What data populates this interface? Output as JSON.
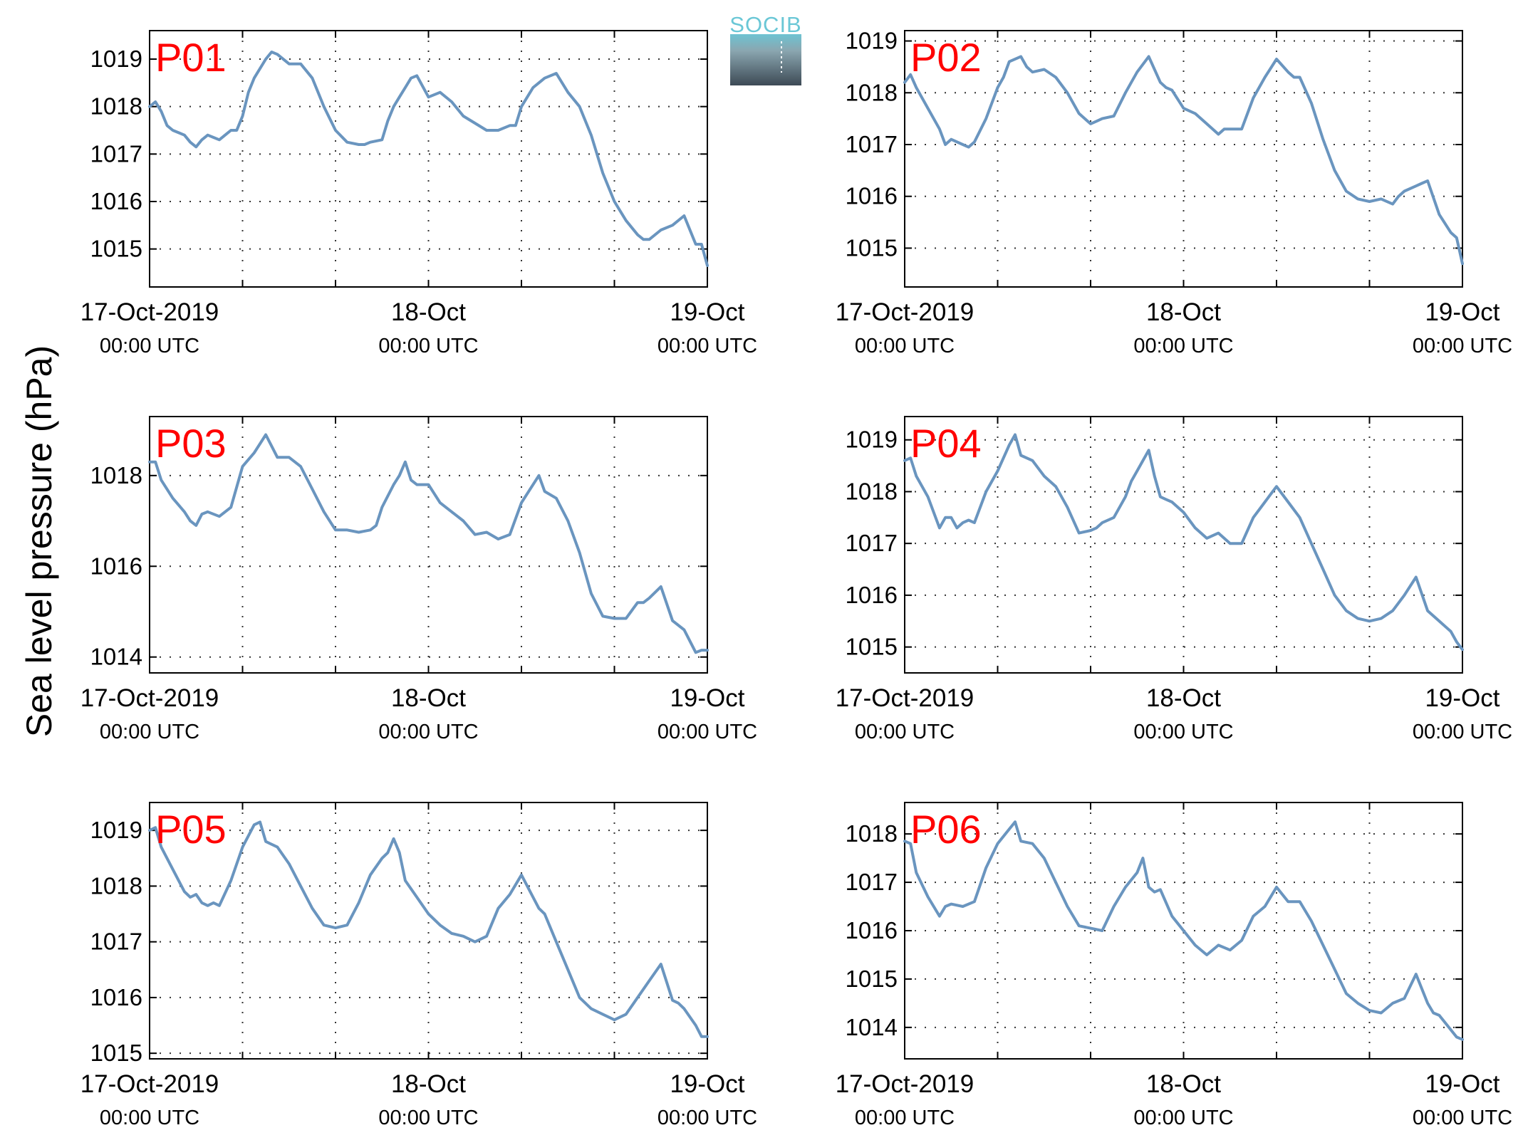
{
  "figure": {
    "ylabel": "Sea level pressure (hPa)",
    "logo_text": "SOCIB",
    "colors": {
      "line": "#6a95bf",
      "panel_label": "#ff0000",
      "axes": "#000000",
      "grid": "#333333",
      "logo_top": "#6ac7d6",
      "logo_bottom": "#3d4a55"
    }
  },
  "chart_data": [
    {
      "type": "line",
      "title": "P01",
      "x_start": "2019-10-17T00:00Z",
      "x_end": "2019-10-19T00:00Z",
      "x_tick_hours": [
        0,
        24,
        48
      ],
      "x_tick_labels": [
        [
          "17-Oct-2019",
          "00:00 UTC"
        ],
        [
          "18-Oct",
          "00:00 UTC"
        ],
        [
          "19-Oct",
          "00:00 UTC"
        ]
      ],
      "ylim": [
        1014.2,
        1019.6
      ],
      "yticks": [
        1015,
        1016,
        1017,
        1018,
        1019
      ],
      "grid": true,
      "series": [
        {
          "x_hours": [
            0,
            0.5,
            1,
            1.5,
            2,
            3,
            3.5,
            4,
            4.5,
            5,
            5.5,
            6,
            6.5,
            7,
            7.5,
            8,
            8.5,
            9,
            10,
            10.5,
            11,
            12,
            13,
            14,
            15,
            16,
            17,
            18,
            18.5,
            19,
            20,
            20.5,
            21,
            21.5,
            22,
            22.5,
            23,
            24,
            25,
            26,
            27,
            28,
            29,
            30,
            31,
            31.5,
            32,
            33,
            34,
            35,
            36,
            37,
            38,
            39,
            40,
            41,
            42,
            42.5,
            43,
            44,
            45,
            46,
            47,
            47.5,
            48
          ],
          "y": [
            1018.0,
            1018.1,
            1017.9,
            1017.6,
            1017.5,
            1017.4,
            1017.25,
            1017.15,
            1017.3,
            1017.4,
            1017.35,
            1017.3,
            1017.4,
            1017.5,
            1017.5,
            1017.8,
            1018.3,
            1018.6,
            1019.0,
            1019.15,
            1019.1,
            1018.9,
            1018.9,
            1018.6,
            1018.0,
            1017.5,
            1017.25,
            1017.2,
            1017.2,
            1017.25,
            1017.3,
            1017.7,
            1018.0,
            1018.2,
            1018.4,
            1018.6,
            1018.65,
            1018.2,
            1018.3,
            1018.1,
            1017.8,
            1017.65,
            1017.5,
            1017.5,
            1017.6,
            1017.6,
            1018.0,
            1018.4,
            1018.6,
            1018.7,
            1018.3,
            1018.0,
            1017.4,
            1016.6,
            1016.0,
            1015.6,
            1015.3,
            1015.2,
            1015.2,
            1015.4,
            1015.5,
            1015.7,
            1015.1,
            1015.1,
            1014.65
          ]
        }
      ]
    },
    {
      "type": "line",
      "title": "P02",
      "x_start": "2019-10-17T00:00Z",
      "x_end": "2019-10-19T00:00Z",
      "x_tick_hours": [
        0,
        24,
        48
      ],
      "x_tick_labels": [
        [
          "17-Oct-2019",
          "00:00 UTC"
        ],
        [
          "18-Oct",
          "00:00 UTC"
        ],
        [
          "19-Oct",
          "00:00 UTC"
        ]
      ],
      "ylim": [
        1014.25,
        1019.2
      ],
      "yticks": [
        1015,
        1016,
        1017,
        1018,
        1019
      ],
      "grid": true,
      "series": [
        {
          "x_hours": [
            0,
            0.5,
            1,
            2,
            3,
            3.5,
            4,
            5,
            5.5,
            6,
            7,
            8,
            8.5,
            9,
            10,
            10.5,
            11,
            12,
            13,
            14,
            15,
            16,
            16.5,
            17,
            18,
            19,
            19.5,
            20,
            21,
            22,
            22.5,
            23,
            24,
            25,
            26,
            27,
            27.5,
            28,
            29,
            30,
            31,
            32,
            33,
            33.5,
            34,
            35,
            36,
            37,
            38,
            39,
            40,
            41,
            42,
            42.5,
            43,
            44,
            44.5,
            45,
            46,
            47,
            47.5,
            48
          ],
          "y": [
            1018.2,
            1018.35,
            1018.1,
            1017.7,
            1017.3,
            1017.0,
            1017.1,
            1017.0,
            1016.95,
            1017.05,
            1017.5,
            1018.1,
            1018.3,
            1018.6,
            1018.7,
            1018.5,
            1018.4,
            1018.45,
            1018.3,
            1018.0,
            1017.6,
            1017.4,
            1017.45,
            1017.5,
            1017.55,
            1018.0,
            1018.2,
            1018.4,
            1018.7,
            1018.2,
            1018.1,
            1018.05,
            1017.7,
            1017.6,
            1017.4,
            1017.2,
            1017.3,
            1017.3,
            1017.3,
            1017.9,
            1018.3,
            1018.65,
            1018.4,
            1018.3,
            1018.3,
            1017.8,
            1017.1,
            1016.5,
            1016.1,
            1015.95,
            1015.9,
            1015.95,
            1015.85,
            1016.0,
            1016.1,
            1016.2,
            1016.25,
            1016.3,
            1015.65,
            1015.3,
            1015.2,
            1014.7
          ]
        }
      ]
    },
    {
      "type": "line",
      "title": "P03",
      "x_start": "2019-10-17T00:00Z",
      "x_end": "2019-10-19T00:00Z",
      "x_tick_hours": [
        0,
        24,
        48
      ],
      "x_tick_labels": [
        [
          "17-Oct-2019",
          "00:00 UTC"
        ],
        [
          "18-Oct",
          "00:00 UTC"
        ],
        [
          "19-Oct",
          "00:00 UTC"
        ]
      ],
      "ylim": [
        1013.65,
        1019.3
      ],
      "yticks": [
        1014,
        1016,
        1018
      ],
      "grid": true,
      "series": [
        {
          "x_hours": [
            0,
            0.5,
            1,
            2,
            3,
            3.5,
            4,
            4.5,
            5,
            6,
            7,
            8,
            9,
            9.5,
            10,
            11,
            12,
            13,
            14,
            15,
            16,
            17,
            18,
            19,
            19.5,
            20,
            21,
            21.5,
            22,
            22.5,
            23,
            24,
            25,
            26,
            27,
            28,
            29,
            30,
            31,
            32,
            33,
            33.5,
            34,
            35,
            36,
            37,
            38,
            39,
            40,
            41,
            42,
            42.5,
            43,
            44,
            45,
            46,
            47,
            47.5,
            48
          ],
          "y": [
            1018.3,
            1018.3,
            1017.9,
            1017.5,
            1017.2,
            1017.0,
            1016.9,
            1017.15,
            1017.2,
            1017.1,
            1017.3,
            1018.2,
            1018.5,
            1018.7,
            1018.9,
            1018.4,
            1018.4,
            1018.2,
            1017.7,
            1017.2,
            1016.8,
            1016.8,
            1016.75,
            1016.8,
            1016.9,
            1017.3,
            1017.8,
            1018.0,
            1018.3,
            1017.9,
            1017.8,
            1017.8,
            1017.4,
            1017.2,
            1017.0,
            1016.7,
            1016.75,
            1016.6,
            1016.7,
            1017.4,
            1017.8,
            1018.0,
            1017.65,
            1017.5,
            1017.0,
            1016.3,
            1015.4,
            1014.9,
            1014.85,
            1014.85,
            1015.2,
            1015.2,
            1015.3,
            1015.55,
            1014.8,
            1014.6,
            1014.1,
            1014.15,
            1014.15
          ]
        }
      ]
    },
    {
      "type": "line",
      "title": "P04",
      "x_start": "2019-10-17T00:00Z",
      "x_end": "2019-10-19T00:00Z",
      "x_tick_hours": [
        0,
        24,
        48
      ],
      "x_tick_labels": [
        [
          "17-Oct-2019",
          "00:00 UTC"
        ],
        [
          "18-Oct",
          "00:00 UTC"
        ],
        [
          "19-Oct",
          "00:00 UTC"
        ]
      ],
      "ylim": [
        1014.5,
        1019.45
      ],
      "yticks": [
        1015,
        1016,
        1017,
        1018,
        1019
      ],
      "grid": true,
      "series": [
        {
          "x_hours": [
            0,
            0.5,
            1,
            2,
            3,
            3.5,
            4,
            4.5,
            5,
            5.5,
            6,
            7,
            8,
            9,
            9.5,
            10,
            11,
            12,
            13,
            14,
            15,
            16,
            16.5,
            17,
            18,
            19,
            19.5,
            20,
            21,
            21.5,
            22,
            22.5,
            23,
            24,
            25,
            26,
            27,
            28,
            29,
            30,
            31,
            31.5,
            32,
            33,
            34,
            35,
            36,
            37,
            38,
            39,
            40,
            41,
            42,
            43,
            44,
            45,
            46,
            47,
            47.5,
            48
          ],
          "y": [
            1018.6,
            1018.65,
            1018.3,
            1017.9,
            1017.3,
            1017.5,
            1017.5,
            1017.3,
            1017.4,
            1017.45,
            1017.4,
            1018.0,
            1018.4,
            1018.9,
            1019.1,
            1018.7,
            1018.6,
            1018.3,
            1018.1,
            1017.7,
            1017.2,
            1017.25,
            1017.3,
            1017.4,
            1017.5,
            1017.9,
            1018.2,
            1018.4,
            1018.8,
            1018.3,
            1017.9,
            1017.85,
            1017.8,
            1017.6,
            1017.3,
            1017.1,
            1017.2,
            1017.0,
            1017.0,
            1017.5,
            1017.8,
            1017.95,
            1018.1,
            1017.8,
            1017.5,
            1017.0,
            1016.5,
            1016.0,
            1015.7,
            1015.55,
            1015.5,
            1015.55,
            1015.7,
            1016.0,
            1016.35,
            1015.7,
            1015.5,
            1015.3,
            1015.1,
            1014.95
          ]
        }
      ]
    },
    {
      "type": "line",
      "title": "P05",
      "x_start": "2019-10-17T00:00Z",
      "x_end": "2019-10-19T00:00Z",
      "x_tick_hours": [
        0,
        24,
        48
      ],
      "x_tick_labels": [
        [
          "17-Oct-2019",
          "00:00 UTC"
        ],
        [
          "18-Oct",
          "00:00 UTC"
        ],
        [
          "19-Oct",
          "00:00 UTC"
        ]
      ],
      "ylim": [
        1014.9,
        1019.5
      ],
      "yticks": [
        1015,
        1016,
        1017,
        1018,
        1019
      ],
      "grid": true,
      "series": [
        {
          "x_hours": [
            0,
            0.5,
            1,
            2,
            3,
            3.5,
            4,
            4.5,
            5,
            5.5,
            6,
            7,
            8,
            9,
            9.5,
            10,
            11,
            12,
            13,
            14,
            15,
            16,
            17,
            18,
            19,
            20,
            20.5,
            21,
            21.5,
            22,
            23,
            24,
            25,
            26,
            27,
            28,
            29,
            30,
            31,
            32,
            33,
            33.5,
            34,
            35,
            36,
            37,
            38,
            39,
            40,
            41,
            42,
            43,
            44,
            45,
            45.5,
            46,
            47,
            47.5,
            48
          ],
          "y": [
            1019.0,
            1019.05,
            1018.7,
            1018.3,
            1017.9,
            1017.8,
            1017.85,
            1017.7,
            1017.65,
            1017.7,
            1017.65,
            1018.1,
            1018.7,
            1019.1,
            1019.15,
            1018.8,
            1018.7,
            1018.4,
            1018.0,
            1017.6,
            1017.3,
            1017.25,
            1017.3,
            1017.7,
            1018.2,
            1018.5,
            1018.6,
            1018.85,
            1018.6,
            1018.1,
            1017.8,
            1017.5,
            1017.3,
            1017.15,
            1017.1,
            1017.0,
            1017.1,
            1017.6,
            1017.85,
            1018.2,
            1017.8,
            1017.6,
            1017.5,
            1017.0,
            1016.5,
            1016.0,
            1015.8,
            1015.7,
            1015.6,
            1015.7,
            1016.0,
            1016.3,
            1016.6,
            1015.95,
            1015.9,
            1015.8,
            1015.5,
            1015.3,
            1015.3
          ]
        }
      ]
    },
    {
      "type": "line",
      "title": "P06",
      "x_start": "2019-10-17T00:00Z",
      "x_end": "2019-10-19T00:00Z",
      "x_tick_hours": [
        0,
        24,
        48
      ],
      "x_tick_labels": [
        [
          "17-Oct-2019",
          "00:00 UTC"
        ],
        [
          "18-Oct",
          "00:00 UTC"
        ],
        [
          "19-Oct",
          "00:00 UTC"
        ]
      ],
      "ylim": [
        1013.35,
        1018.65
      ],
      "yticks": [
        1014,
        1015,
        1016,
        1017,
        1018
      ],
      "grid": true,
      "series": [
        {
          "x_hours": [
            0,
            0.5,
            1,
            2,
            3,
            3.5,
            4,
            5,
            6,
            7,
            8,
            9,
            9.5,
            10,
            11,
            12,
            13,
            14,
            15,
            16,
            17,
            18,
            19,
            20,
            20.5,
            21,
            21.5,
            22,
            23,
            24,
            25,
            26,
            27,
            28,
            29,
            30,
            31,
            32,
            33,
            33.5,
            34,
            35,
            36,
            37,
            38,
            39,
            40,
            41,
            42,
            43,
            44,
            45,
            45.5,
            46,
            47,
            47.5,
            48
          ],
          "y": [
            1017.85,
            1017.8,
            1017.2,
            1016.7,
            1016.3,
            1016.5,
            1016.55,
            1016.5,
            1016.6,
            1017.3,
            1017.8,
            1018.1,
            1018.25,
            1017.85,
            1017.8,
            1017.5,
            1017.0,
            1016.5,
            1016.1,
            1016.05,
            1016.0,
            1016.5,
            1016.9,
            1017.2,
            1017.5,
            1016.9,
            1016.8,
            1016.85,
            1016.3,
            1016.0,
            1015.7,
            1015.5,
            1015.7,
            1015.6,
            1015.8,
            1016.3,
            1016.5,
            1016.9,
            1016.6,
            1016.6,
            1016.6,
            1016.2,
            1015.7,
            1015.2,
            1014.7,
            1014.5,
            1014.35,
            1014.3,
            1014.5,
            1014.6,
            1015.1,
            1014.5,
            1014.3,
            1014.25,
            1013.95,
            1013.8,
            1013.75
          ]
        }
      ]
    }
  ]
}
